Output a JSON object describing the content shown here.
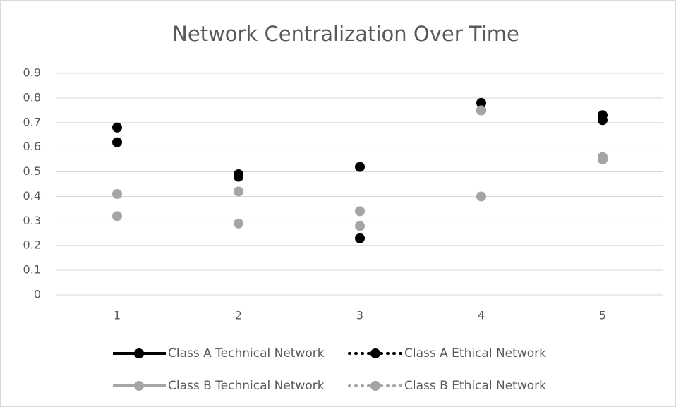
{
  "chart_data": {
    "type": "line",
    "title": "Network Centralization Over Time",
    "categories": [
      "1",
      "2",
      "3",
      "4",
      "5"
    ],
    "series": [
      {
        "name": "Class A Technical Network",
        "color": "#000000",
        "style": "solid",
        "values": [
          0.62,
          0.49,
          0.52,
          0.75,
          0.71
        ]
      },
      {
        "name": "Class A Ethical Network",
        "color": "#000000",
        "style": "dotted",
        "values": [
          0.68,
          0.48,
          0.23,
          0.78,
          0.73
        ]
      },
      {
        "name": "Class B Technical Network",
        "color": "#a5a5a5",
        "style": "solid",
        "values": [
          0.32,
          0.42,
          0.28,
          0.4,
          0.55
        ]
      },
      {
        "name": "Class B Ethical Network",
        "color": "#a5a5a5",
        "style": "dotted",
        "values": [
          0.41,
          0.29,
          0.34,
          0.75,
          0.56
        ]
      }
    ],
    "ylim": [
      0,
      0.9
    ],
    "yticks": [
      0,
      0.1,
      0.2,
      0.3,
      0.4,
      0.5,
      0.6,
      0.7,
      0.8,
      0.9
    ],
    "grid": true,
    "legend": "bottom"
  }
}
